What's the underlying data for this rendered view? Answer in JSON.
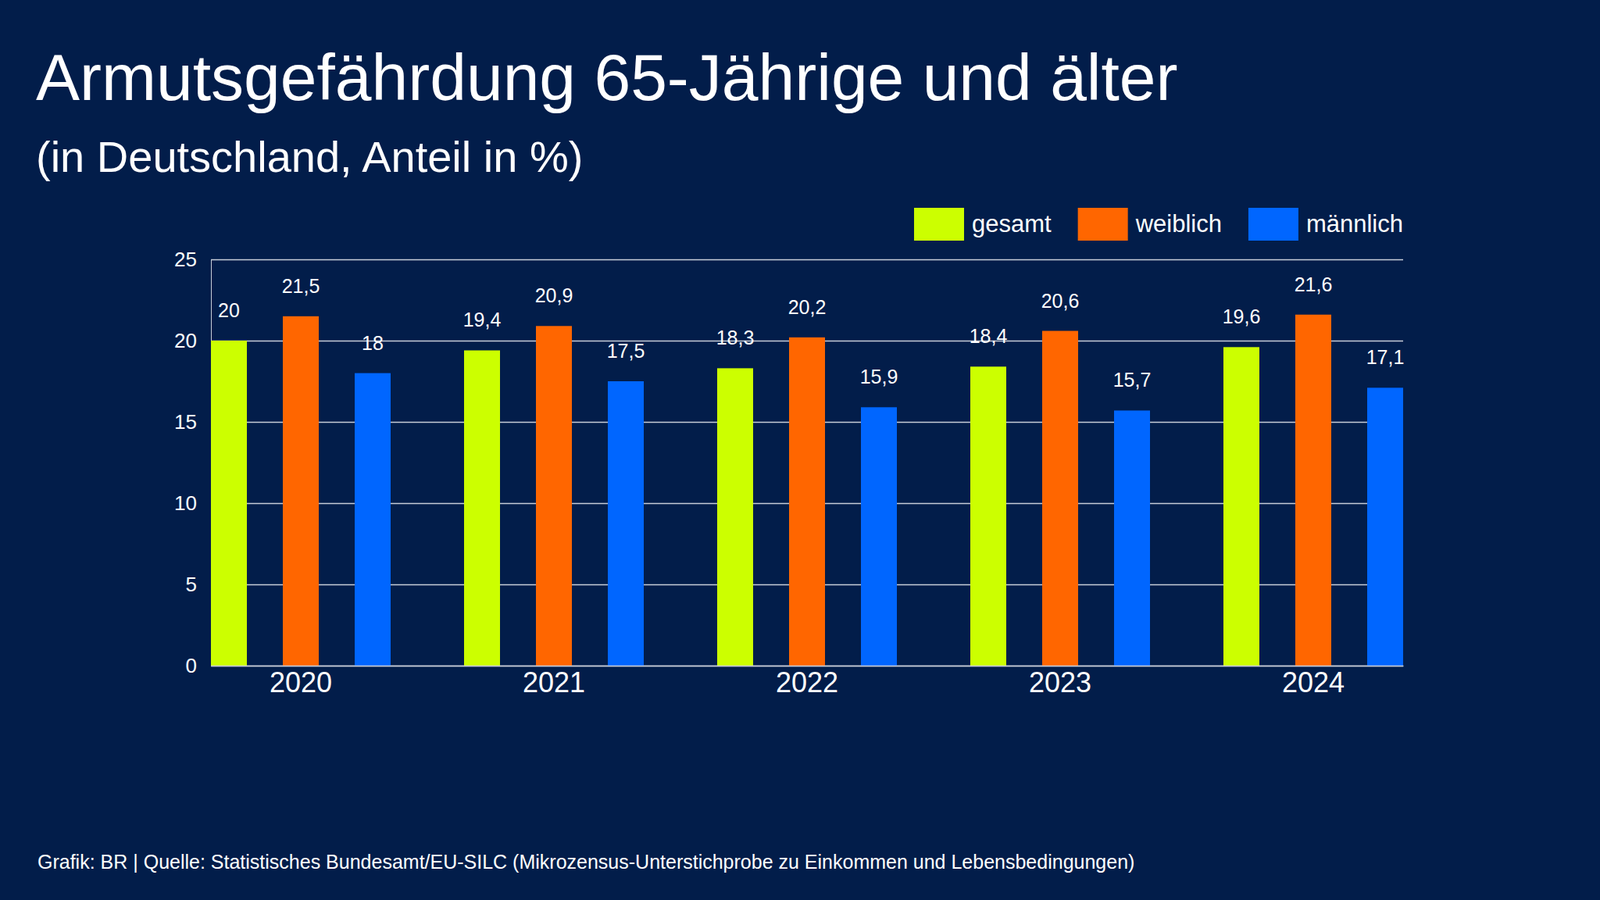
{
  "chart_data": {
    "type": "bar",
    "title": "Armutsgefährdung 65-Jährige und älter",
    "subtitle": "(in Deutschland, Anteil in %)",
    "source": "Grafik: BR | Quelle: Statistisches Bundesamt/EU-SILC (Mikrozensus-Unterstichprobe zu Einkommen und Lebensbedingungen)",
    "categories": [
      "2020",
      "2021",
      "2022",
      "2023",
      "2024"
    ],
    "series": [
      {
        "name": "gesamt",
        "color": "#ccff00",
        "values": [
          20,
          19.4,
          18.3,
          18.4,
          19.6
        ],
        "value_labels": [
          "20",
          "19,4",
          "18,3",
          "18,4",
          "19,6"
        ]
      },
      {
        "name": "weiblich",
        "color": "#ff6600",
        "values": [
          21.5,
          20.9,
          20.2,
          20.6,
          21.6
        ],
        "value_labels": [
          "21,5",
          "20,9",
          "20,2",
          "20,6",
          "21,6"
        ]
      },
      {
        "name": "männlich",
        "color": "#0066ff",
        "values": [
          18,
          17.5,
          15.9,
          15.7,
          17.1
        ],
        "value_labels": [
          "18",
          "17,5",
          "15,9",
          "15,7",
          "17,1"
        ]
      }
    ],
    "ylim": [
      0,
      25
    ],
    "yticks": [
      0,
      5,
      10,
      15,
      20,
      25
    ],
    "grid": true,
    "legend": "top-right",
    "data_labels": true
  }
}
